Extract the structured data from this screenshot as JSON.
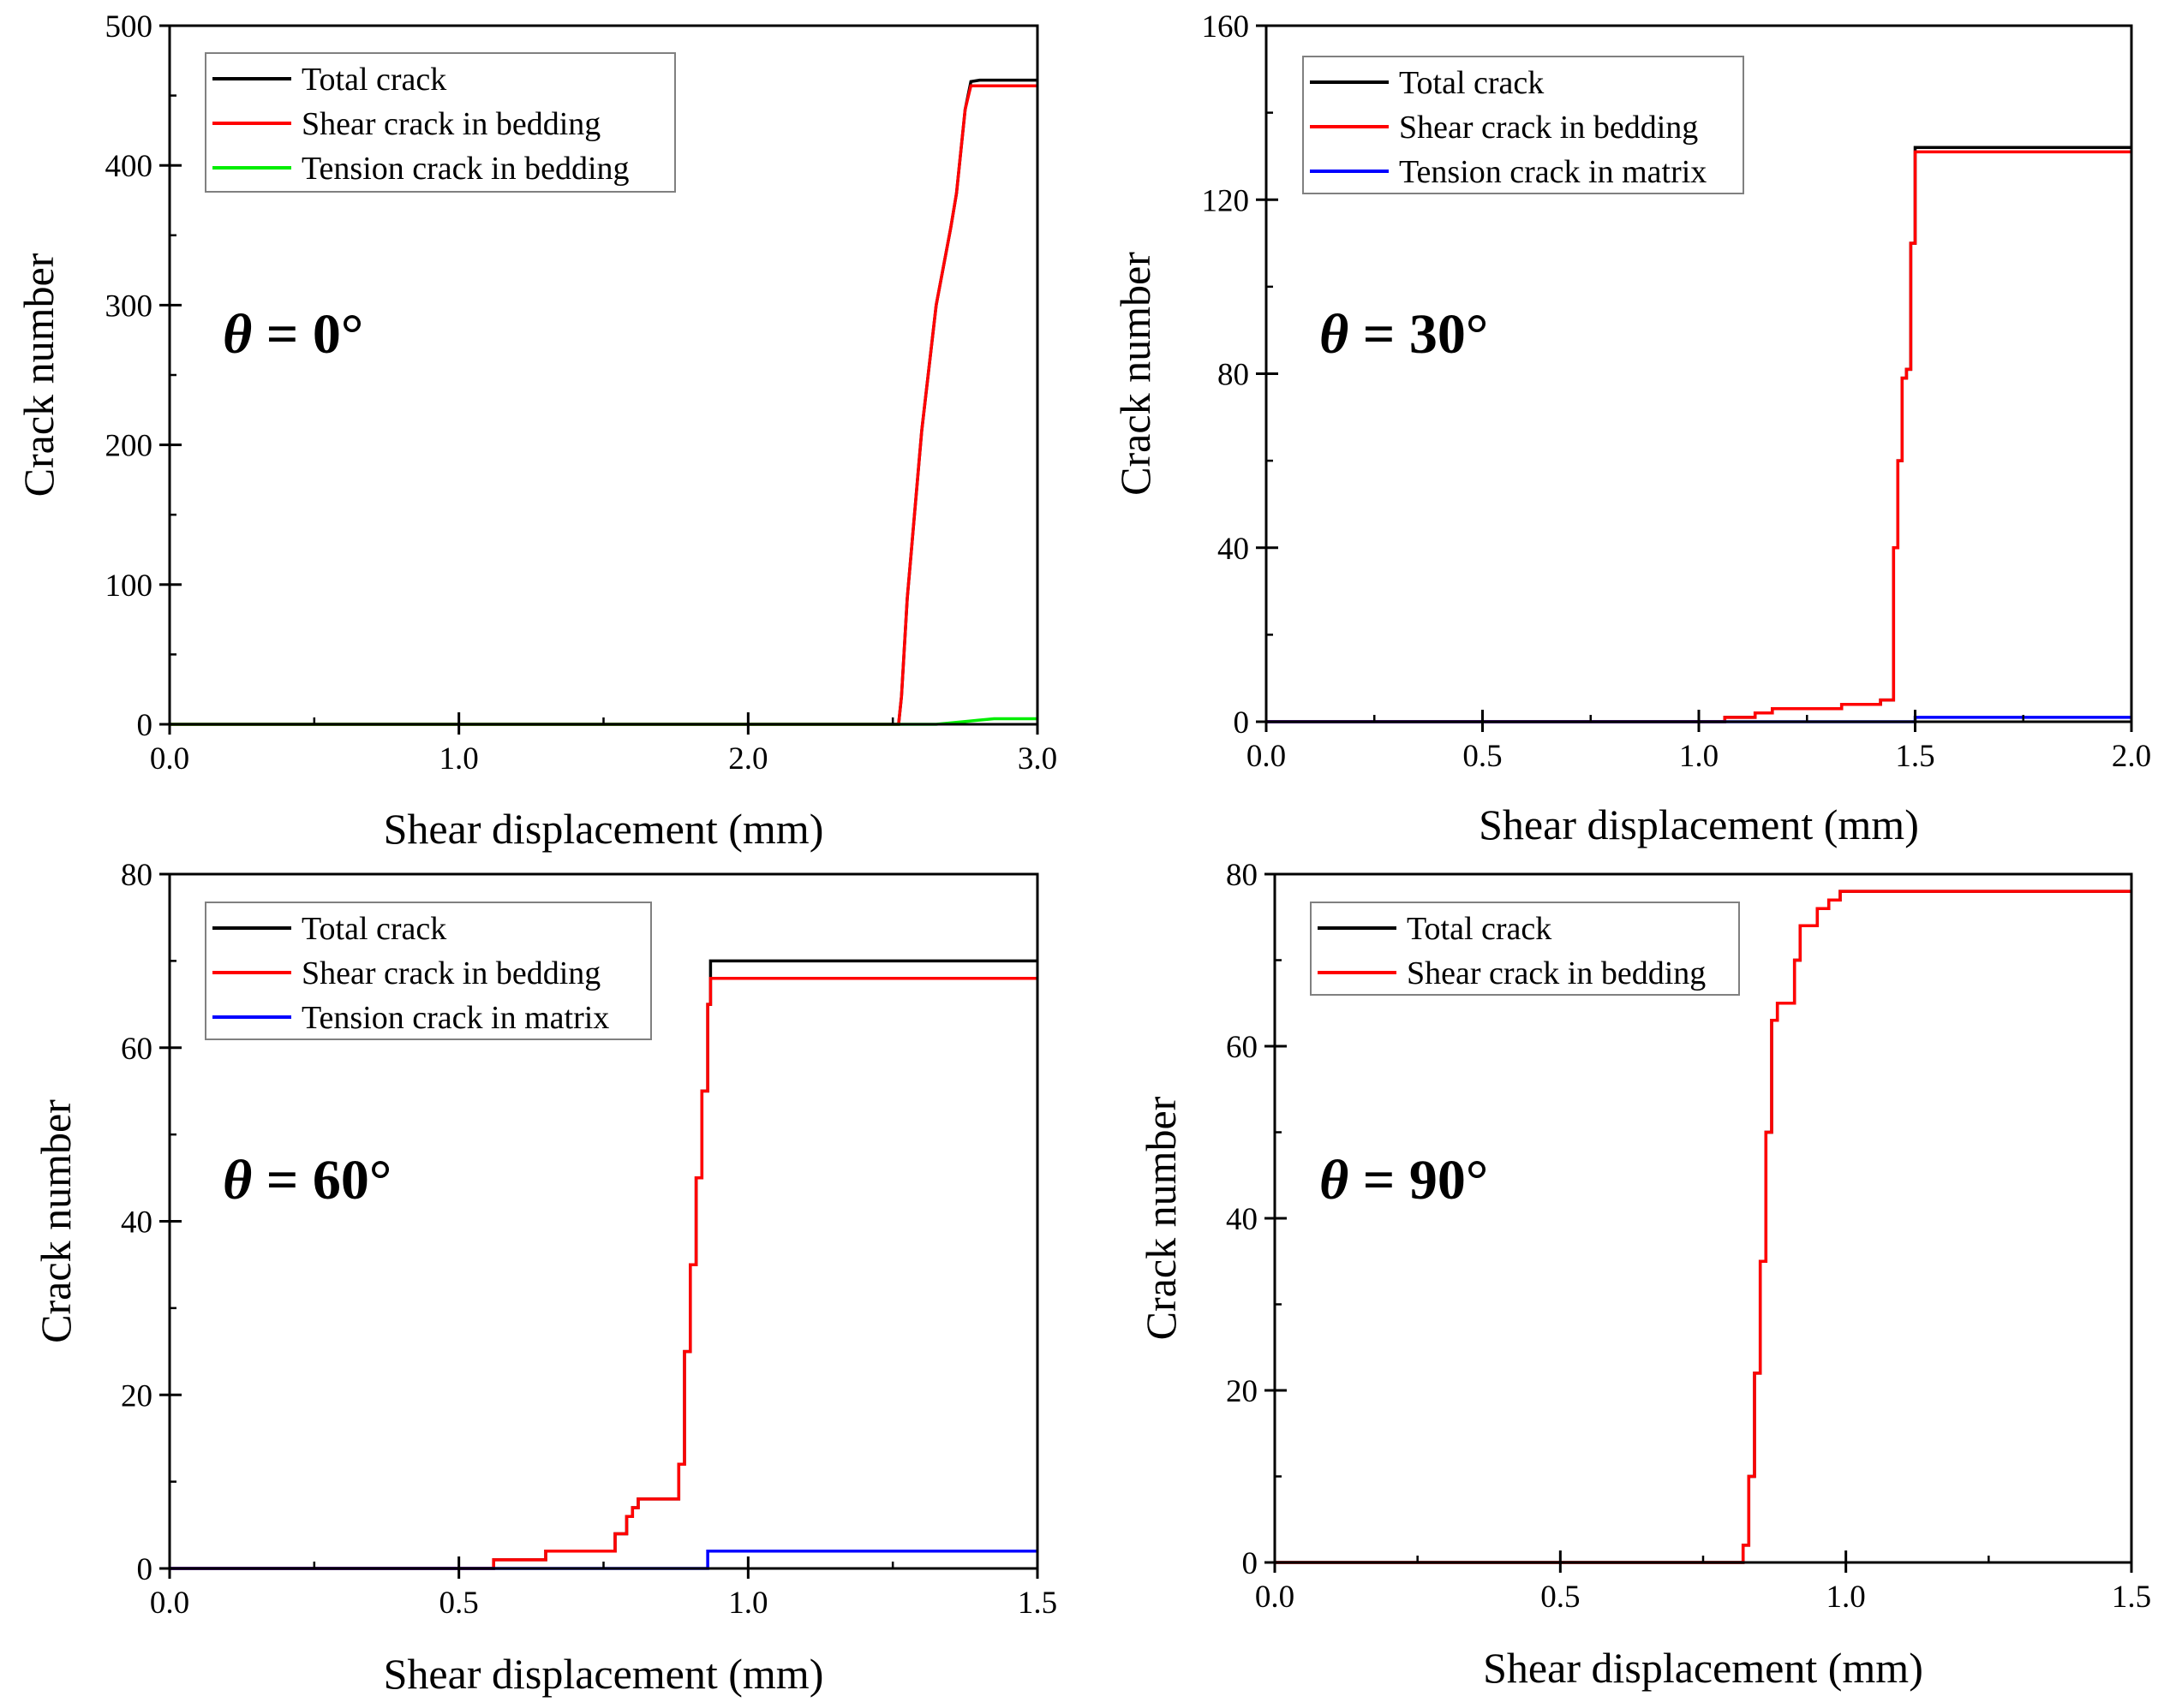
{
  "figure": {
    "background": "#ffffff"
  },
  "chart_data": [
    {
      "type": "line",
      "annotation": {
        "symbol": "θ",
        "text": " = 0°"
      },
      "xlabel": "Shear displacement (mm)",
      "ylabel": "Crack number",
      "xlim": [
        0,
        3.0
      ],
      "ylim": [
        0,
        500
      ],
      "xticks": [
        0,
        1.0,
        2.0,
        3.0
      ],
      "xtick_labels": [
        "0.0",
        "1.0",
        "2.0",
        "3.0"
      ],
      "yticks": [
        0,
        100,
        200,
        300,
        400,
        500
      ],
      "ytick_labels": [
        "0",
        "100",
        "200",
        "300",
        "400",
        "500"
      ],
      "legend_position": "top-left",
      "series": [
        {
          "name": "Total crack",
          "color": "#000000",
          "step": false,
          "x": [
            0,
            2.52,
            2.53,
            2.55,
            2.6,
            2.65,
            2.7,
            2.72,
            2.75,
            2.77,
            2.8,
            3.0
          ],
          "y": [
            0,
            0,
            20,
            90,
            210,
            300,
            355,
            380,
            440,
            460,
            461,
            461
          ]
        },
        {
          "name": "Shear crack in bedding",
          "color": "#ff0000",
          "step": false,
          "x": [
            0,
            2.52,
            2.53,
            2.55,
            2.6,
            2.65,
            2.7,
            2.72,
            2.75,
            2.77,
            2.8,
            3.0
          ],
          "y": [
            0,
            0,
            20,
            90,
            210,
            300,
            355,
            380,
            440,
            457,
            457,
            457
          ]
        },
        {
          "name": "Tension crack in bedding",
          "color": "#00ee00",
          "step": false,
          "x": [
            0,
            2.65,
            2.75,
            2.85,
            3.0
          ],
          "y": [
            0,
            0,
            2,
            4,
            4
          ]
        }
      ]
    },
    {
      "type": "line",
      "annotation": {
        "symbol": "θ",
        "text": " = 30°"
      },
      "xlabel": "Shear displacement (mm)",
      "ylabel": "Crack number",
      "xlim": [
        0,
        2.0
      ],
      "ylim": [
        0,
        160
      ],
      "xticks": [
        0,
        0.5,
        1.0,
        1.5,
        2.0
      ],
      "xtick_labels": [
        "0.0",
        "0.5",
        "1.0",
        "1.5",
        "2.0"
      ],
      "yticks": [
        0,
        40,
        80,
        120,
        160
      ],
      "ytick_labels": [
        "0",
        "40",
        "80",
        "120",
        "160"
      ],
      "legend_position": "top-left",
      "series": [
        {
          "name": "Total crack",
          "color": "#000000",
          "step": true,
          "x": [
            0,
            1.06,
            1.13,
            1.17,
            1.33,
            1.42,
            1.45,
            1.46,
            1.47,
            1.48,
            1.49,
            1.5,
            2.0
          ],
          "y": [
            0,
            1,
            2,
            3,
            4,
            5,
            40,
            60,
            79,
            81,
            110,
            132,
            132
          ]
        },
        {
          "name": "Shear crack in bedding",
          "color": "#ff0000",
          "step": true,
          "x": [
            0,
            1.06,
            1.13,
            1.17,
            1.33,
            1.42,
            1.45,
            1.46,
            1.47,
            1.48,
            1.49,
            1.5,
            2.0
          ],
          "y": [
            0,
            1,
            2,
            3,
            4,
            5,
            40,
            60,
            79,
            81,
            110,
            131,
            131
          ]
        },
        {
          "name": "Tension crack in matrix",
          "color": "#0000ff",
          "step": true,
          "x": [
            0,
            1.5,
            2.0
          ],
          "y": [
            0,
            1,
            1
          ]
        }
      ]
    },
    {
      "type": "line",
      "annotation": {
        "symbol": "θ",
        "text": " = 60°"
      },
      "xlabel": "Shear displacement (mm)",
      "ylabel": "Crack number",
      "xlim": [
        0,
        1.5
      ],
      "ylim": [
        0,
        80
      ],
      "xticks": [
        0,
        0.5,
        1.0,
        1.5
      ],
      "xtick_labels": [
        "0.0",
        "0.5",
        "1.0",
        "1.5"
      ],
      "yticks": [
        0,
        20,
        40,
        60,
        80
      ],
      "ytick_labels": [
        "0",
        "20",
        "40",
        "60",
        "80"
      ],
      "legend_position": "top-left",
      "series": [
        {
          "name": "Total crack",
          "color": "#000000",
          "step": true,
          "x": [
            0,
            0.56,
            0.65,
            0.77,
            0.79,
            0.8,
            0.81,
            0.82,
            0.88,
            0.89,
            0.9,
            0.91,
            0.92,
            0.93,
            0.935,
            1.5
          ],
          "y": [
            0,
            1,
            2,
            4,
            6,
            7,
            8,
            8,
            12,
            25,
            35,
            45,
            55,
            65,
            70,
            70
          ]
        },
        {
          "name": "Shear crack in bedding",
          "color": "#ff0000",
          "step": true,
          "x": [
            0,
            0.56,
            0.65,
            0.77,
            0.79,
            0.8,
            0.81,
            0.82,
            0.88,
            0.89,
            0.9,
            0.91,
            0.92,
            0.93,
            0.935,
            1.5
          ],
          "y": [
            0,
            1,
            2,
            4,
            6,
            7,
            8,
            8,
            12,
            25,
            35,
            45,
            55,
            65,
            68,
            68
          ]
        },
        {
          "name": "Tension crack in matrix",
          "color": "#0000ff",
          "step": true,
          "x": [
            0,
            0.93,
            1.5
          ],
          "y": [
            0,
            2,
            2
          ]
        }
      ]
    },
    {
      "type": "line",
      "annotation": {
        "symbol": "θ",
        "text": " = 90°"
      },
      "xlabel": "Shear displacement (mm)",
      "ylabel": "Crack number",
      "xlim": [
        0,
        1.5
      ],
      "ylim": [
        0,
        80
      ],
      "xticks": [
        0,
        0.5,
        1.0,
        1.5
      ],
      "xtick_labels": [
        "0.0",
        "0.5",
        "1.0",
        "1.5"
      ],
      "yticks": [
        0,
        20,
        40,
        60,
        80
      ],
      "ytick_labels": [
        "0",
        "20",
        "40",
        "60",
        "80"
      ],
      "legend_position": "top-left",
      "series": [
        {
          "name": "Total crack",
          "color": "#000000",
          "step": true,
          "x": [
            0,
            0.82,
            0.83,
            0.84,
            0.85,
            0.86,
            0.87,
            0.88,
            0.91,
            0.92,
            0.93,
            0.95,
            0.97,
            0.99,
            1.5
          ],
          "y": [
            0,
            2,
            10,
            22,
            35,
            50,
            63,
            65,
            70,
            74,
            74,
            76,
            77,
            78,
            78
          ]
        },
        {
          "name": "Shear crack in bedding",
          "color": "#ff0000",
          "step": true,
          "x": [
            0,
            0.82,
            0.83,
            0.84,
            0.85,
            0.86,
            0.87,
            0.88,
            0.91,
            0.92,
            0.93,
            0.95,
            0.97,
            0.99,
            1.5
          ],
          "y": [
            0,
            2,
            10,
            22,
            35,
            50,
            63,
            65,
            70,
            74,
            74,
            76,
            77,
            78,
            78
          ]
        }
      ]
    }
  ]
}
